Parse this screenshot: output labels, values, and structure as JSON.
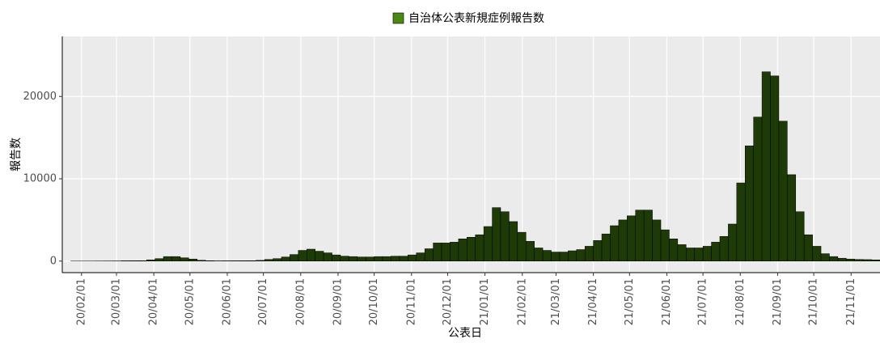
{
  "chart_data": {
    "type": "bar",
    "legend_title": "自治体公表新規症例報告数",
    "x_label": "公表日",
    "y_label": "報告数",
    "color": "#1e3a06",
    "legend_color": "#4a8a12",
    "grid": true,
    "xlim": [
      "20/01/16",
      "21/11/25"
    ],
    "ylim": [
      -1400,
      27300
    ],
    "yticks": [
      0,
      10000,
      20000
    ],
    "xticks": [
      "20/02/01",
      "20/03/01",
      "20/04/01",
      "20/05/01",
      "20/06/01",
      "20/07/01",
      "20/08/01",
      "20/09/01",
      "20/10/01",
      "20/11/01",
      "20/12/01",
      "21/01/01",
      "21/02/01",
      "21/03/01",
      "21/04/01",
      "21/05/01",
      "21/06/01",
      "21/07/01",
      "21/08/01",
      "21/09/01",
      "21/10/01",
      "21/11/01"
    ],
    "x": [
      "20/01/16",
      "20/01/23",
      "20/01/30",
      "20/02/06",
      "20/02/13",
      "20/02/20",
      "20/02/27",
      "20/03/05",
      "20/03/12",
      "20/03/19",
      "20/03/26",
      "20/04/02",
      "20/04/09",
      "20/04/16",
      "20/04/23",
      "20/04/30",
      "20/05/07",
      "20/05/14",
      "20/05/21",
      "20/05/28",
      "20/06/04",
      "20/06/11",
      "20/06/18",
      "20/06/25",
      "20/07/02",
      "20/07/09",
      "20/07/16",
      "20/07/23",
      "20/07/30",
      "20/08/06",
      "20/08/13",
      "20/08/20",
      "20/08/27",
      "20/09/03",
      "20/09/10",
      "20/09/17",
      "20/09/24",
      "20/10/01",
      "20/10/08",
      "20/10/15",
      "20/10/22",
      "20/10/29",
      "20/11/05",
      "20/11/12",
      "20/11/19",
      "20/11/26",
      "20/12/03",
      "20/12/10",
      "20/12/17",
      "20/12/24",
      "20/12/31",
      "21/01/07",
      "21/01/14",
      "21/01/21",
      "21/01/28",
      "21/02/04",
      "21/02/11",
      "21/02/18",
      "21/02/25",
      "21/03/04",
      "21/03/11",
      "21/03/18",
      "21/03/25",
      "21/04/01",
      "21/04/08",
      "21/04/15",
      "21/04/22",
      "21/04/29",
      "21/05/06",
      "21/05/13",
      "21/05/20",
      "21/05/27",
      "21/06/03",
      "21/06/10",
      "21/06/17",
      "21/06/24",
      "21/07/01",
      "21/07/08",
      "21/07/15",
      "21/07/22",
      "21/07/29",
      "21/08/05",
      "21/08/12",
      "21/08/19",
      "21/08/26",
      "21/09/02",
      "21/09/09",
      "21/09/16",
      "21/09/23",
      "21/09/30",
      "21/10/07",
      "21/10/14",
      "21/10/21",
      "21/10/28",
      "21/11/04",
      "21/11/11",
      "21/11/18"
    ],
    "values": [
      0,
      2,
      3,
      5,
      10,
      15,
      20,
      40,
      45,
      50,
      150,
      300,
      550,
      550,
      400,
      250,
      100,
      50,
      30,
      35,
      40,
      45,
      50,
      90,
      200,
      300,
      500,
      800,
      1300,
      1450,
      1200,
      1000,
      750,
      600,
      550,
      500,
      500,
      550,
      550,
      600,
      600,
      750,
      1000,
      1500,
      2200,
      2200,
      2300,
      2700,
      2900,
      3200,
      4200,
      6500,
      6000,
      4800,
      3500,
      2400,
      1600,
      1300,
      1100,
      1100,
      1250,
      1400,
      1800,
      2500,
      3300,
      4300,
      5000,
      5500,
      6200,
      6200,
      5000,
      3800,
      2700,
      2000,
      1600,
      1600,
      1800,
      2300,
      3000,
      4500,
      9500,
      14000,
      17500,
      23000,
      22500,
      17000,
      10500,
      6000,
      3200,
      1800,
      900,
      550,
      350,
      250,
      200,
      180,
      150
    ]
  }
}
